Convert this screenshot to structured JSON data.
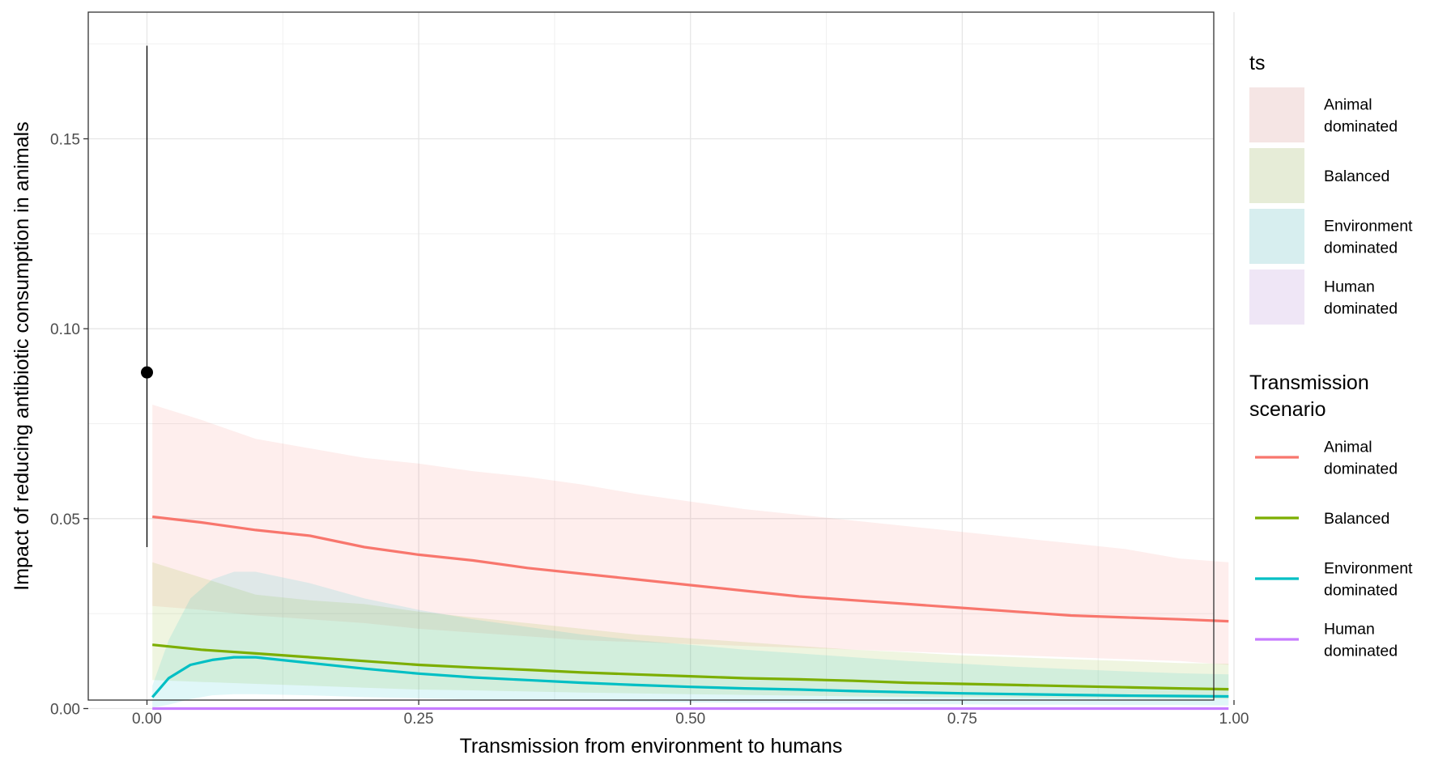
{
  "chart_data": {
    "type": "line",
    "xlabel": "Transmission from environment to humans",
    "ylabel": "Impact of reducing antibiotic consumption in animals",
    "xlim": [
      -0.1,
      1.1
    ],
    "ylim": [
      -0.009,
      0.184
    ],
    "x_ticks": [
      0.0,
      0.25,
      0.5,
      0.75,
      1.0
    ],
    "x_tick_labels": [
      "0.00",
      "0.25",
      "0.50",
      "0.75",
      "1.00"
    ],
    "y_ticks": [
      0.0,
      0.05,
      0.1,
      0.15
    ],
    "y_tick_labels": [
      "0.00",
      "0.05",
      "0.10",
      "0.15"
    ],
    "grid": true,
    "legend_placement": "right",
    "series": [
      {
        "name": "Animal dominated",
        "color": "#F8766D",
        "fill_color": "#F8766D",
        "x": [
          0.005,
          0.05,
          0.1,
          0.15,
          0.2,
          0.25,
          0.3,
          0.35,
          0.4,
          0.45,
          0.5,
          0.55,
          0.6,
          0.65,
          0.7,
          0.75,
          0.8,
          0.85,
          0.9,
          0.95,
          0.995
        ],
        "y": [
          0.0505,
          0.049,
          0.047,
          0.0455,
          0.0425,
          0.0405,
          0.039,
          0.037,
          0.0355,
          0.034,
          0.0325,
          0.031,
          0.0295,
          0.0285,
          0.0275,
          0.0265,
          0.0255,
          0.0245,
          0.024,
          0.0235,
          0.023
        ],
        "lower": [
          0.027,
          0.026,
          0.0245,
          0.0235,
          0.0225,
          0.021,
          0.02,
          0.019,
          0.018,
          0.0175,
          0.017,
          0.0165,
          0.016,
          0.0155,
          0.015,
          0.0145,
          0.014,
          0.0135,
          0.013,
          0.0125,
          0.0115
        ],
        "upper": [
          0.08,
          0.076,
          0.071,
          0.0685,
          0.066,
          0.0645,
          0.0625,
          0.061,
          0.059,
          0.0565,
          0.0545,
          0.0525,
          0.051,
          0.0495,
          0.048,
          0.0465,
          0.045,
          0.0435,
          0.042,
          0.0395,
          0.0385
        ]
      },
      {
        "name": "Balanced",
        "color": "#7CAE00",
        "fill_color": "#7CAE00",
        "x": [
          0.005,
          0.05,
          0.1,
          0.15,
          0.2,
          0.25,
          0.3,
          0.35,
          0.4,
          0.45,
          0.5,
          0.55,
          0.6,
          0.65,
          0.7,
          0.75,
          0.8,
          0.85,
          0.9,
          0.95,
          0.995
        ],
        "y": [
          0.0168,
          0.0155,
          0.0145,
          0.0135,
          0.0125,
          0.0115,
          0.0108,
          0.0102,
          0.0095,
          0.009,
          0.0085,
          0.008,
          0.0077,
          0.0073,
          0.0068,
          0.0065,
          0.0062,
          0.0059,
          0.0056,
          0.0053,
          0.0051
        ],
        "lower": [
          0.0075,
          0.007,
          0.0065,
          0.006,
          0.0055,
          0.005,
          0.0048,
          0.0045,
          0.0042,
          0.004,
          0.0038,
          0.0036,
          0.0034,
          0.0032,
          0.0031,
          0.003,
          0.0029,
          0.0028,
          0.0027,
          0.0026,
          0.0025
        ],
        "upper": [
          0.0385,
          0.0345,
          0.03,
          0.0285,
          0.0275,
          0.0255,
          0.024,
          0.0225,
          0.021,
          0.0195,
          0.0185,
          0.0175,
          0.0165,
          0.0155,
          0.0148,
          0.014,
          0.0135,
          0.013,
          0.0125,
          0.012,
          0.0118
        ]
      },
      {
        "name": "Environment dominated",
        "color": "#00BFC4",
        "fill_color": "#00BFC4",
        "x": [
          0.005,
          0.02,
          0.04,
          0.06,
          0.08,
          0.1,
          0.15,
          0.2,
          0.25,
          0.3,
          0.35,
          0.4,
          0.45,
          0.5,
          0.55,
          0.6,
          0.65,
          0.7,
          0.75,
          0.8,
          0.85,
          0.9,
          0.95,
          0.995
        ],
        "y": [
          0.003,
          0.008,
          0.0115,
          0.0128,
          0.0135,
          0.0135,
          0.012,
          0.0105,
          0.0092,
          0.0082,
          0.0075,
          0.0068,
          0.0062,
          0.0057,
          0.0053,
          0.005,
          0.0046,
          0.0043,
          0.004,
          0.0038,
          0.0036,
          0.0034,
          0.0033,
          0.0032
        ],
        "lower": [
          0.0003,
          0.001,
          0.0025,
          0.0035,
          0.0038,
          0.0038,
          0.0035,
          0.003,
          0.0027,
          0.0024,
          0.0022,
          0.002,
          0.0018,
          0.0016,
          0.0015,
          0.0014,
          0.0013,
          0.0012,
          0.0011,
          0.001,
          0.001,
          0.0009,
          0.0009,
          0.0008
        ],
        "upper": [
          0.006,
          0.018,
          0.029,
          0.034,
          0.036,
          0.036,
          0.033,
          0.029,
          0.026,
          0.0235,
          0.0215,
          0.0195,
          0.018,
          0.0168,
          0.0155,
          0.0145,
          0.0135,
          0.0125,
          0.0118,
          0.011,
          0.0104,
          0.0098,
          0.0093,
          0.009
        ]
      },
      {
        "name": "Human dominated",
        "color": "#C77CFF",
        "fill_color": "#C77CFF",
        "x": [
          0.005,
          0.995
        ],
        "y": [
          0.0,
          0.0
        ],
        "lower": [
          0.0,
          0.0
        ],
        "upper": [
          0.0003,
          0.0003
        ]
      }
    ],
    "observed_point": {
      "x": 0.0,
      "y": 0.0885,
      "lower": 0.0425,
      "upper": 0.1745
    },
    "legends": [
      {
        "title": "ts",
        "kind": "fill",
        "items": [
          "Animal dominated",
          "Balanced",
          "Environment dominated",
          "Human dominated"
        ]
      },
      {
        "title": "Transmission scenario",
        "kind": "line",
        "items": [
          "Animal dominated",
          "Balanced",
          "Environment dominated",
          "Human dominated"
        ]
      }
    ]
  }
}
